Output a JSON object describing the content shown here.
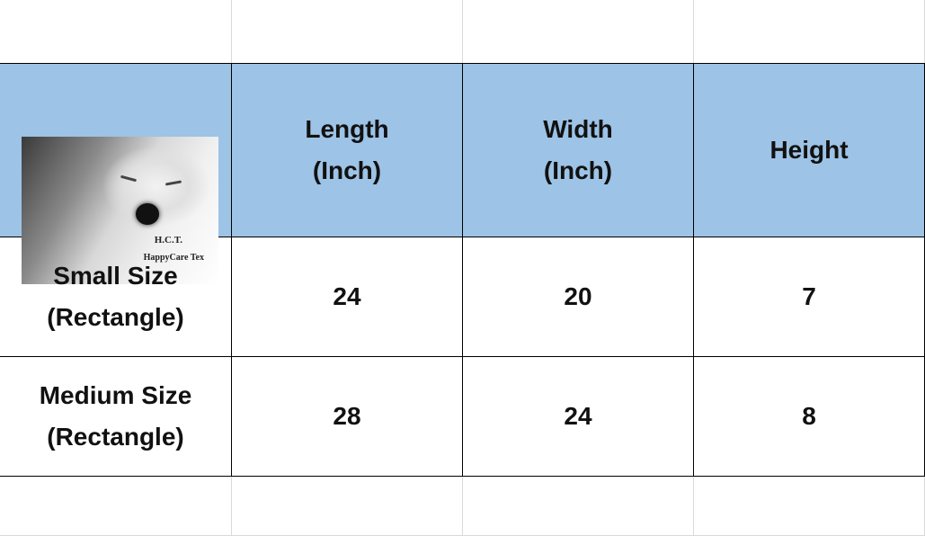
{
  "table": {
    "logo": {
      "line1": "H.C.T.",
      "line2": "HappyCare Tex"
    },
    "headers": [
      "Length\n(Inch)",
      "Width\n(Inch)",
      "Height"
    ],
    "header_lines": [
      [
        "Length",
        "(Inch)"
      ],
      [
        "Width",
        "(Inch)"
      ],
      [
        "Height"
      ]
    ],
    "rows": [
      {
        "label": [
          "Small Size",
          "(Rectangle)"
        ],
        "values": [
          "24",
          "20",
          "7"
        ]
      },
      {
        "label": [
          "Medium Size",
          "(Rectangle)"
        ],
        "values": [
          "28",
          "24",
          "8"
        ]
      }
    ]
  },
  "colors": {
    "header_bg": "#9dc3e6",
    "border": "#000000",
    "gridline": "#d9d9d9"
  }
}
